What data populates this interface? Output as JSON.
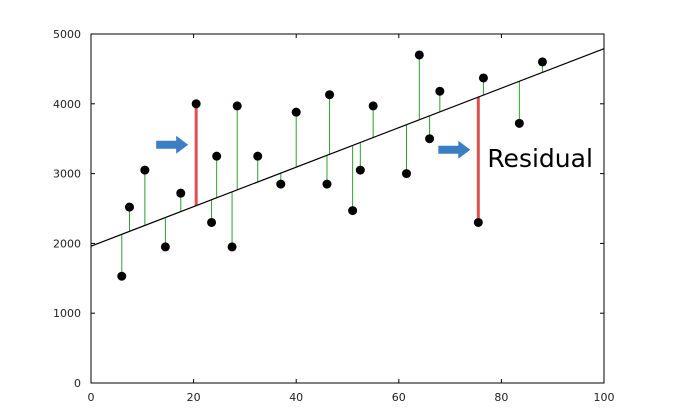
{
  "chart_data": {
    "type": "scatter",
    "title": "",
    "xlabel": "",
    "ylabel": "",
    "xlim": [
      0,
      100
    ],
    "ylim": [
      0,
      5000
    ],
    "x_ticks": [
      0,
      20,
      40,
      60,
      80,
      100
    ],
    "y_ticks": [
      0,
      1000,
      2000,
      3000,
      4000,
      5000
    ],
    "x_tick_labels": [
      "0",
      "20",
      "40",
      "60",
      "80",
      "100"
    ],
    "y_tick_labels": [
      "0",
      "1000",
      "2000",
      "3000",
      "4000",
      "5000"
    ],
    "grid": false,
    "regression_line": {
      "intercept": 1960,
      "slope": 28.3
    },
    "points": [
      {
        "x": 6,
        "y": 1530
      },
      {
        "x": 7.5,
        "y": 2520
      },
      {
        "x": 10.5,
        "y": 3050
      },
      {
        "x": 14.5,
        "y": 1950
      },
      {
        "x": 17.5,
        "y": 2720
      },
      {
        "x": 20.5,
        "y": 4000,
        "highlight": true
      },
      {
        "x": 23.5,
        "y": 2300
      },
      {
        "x": 24.5,
        "y": 3250
      },
      {
        "x": 27.5,
        "y": 1950
      },
      {
        "x": 28.5,
        "y": 3970
      },
      {
        "x": 32.5,
        "y": 3250
      },
      {
        "x": 37,
        "y": 2850
      },
      {
        "x": 40,
        "y": 3880
      },
      {
        "x": 46,
        "y": 2850
      },
      {
        "x": 46.5,
        "y": 4130
      },
      {
        "x": 51,
        "y": 2470
      },
      {
        "x": 52.5,
        "y": 3050
      },
      {
        "x": 55,
        "y": 3970
      },
      {
        "x": 61.5,
        "y": 3000
      },
      {
        "x": 64,
        "y": 4700
      },
      {
        "x": 66,
        "y": 3500
      },
      {
        "x": 68,
        "y": 4180
      },
      {
        "x": 75.5,
        "y": 2300,
        "highlight": true
      },
      {
        "x": 76.5,
        "y": 4370
      },
      {
        "x": 83.5,
        "y": 3720
      },
      {
        "x": 88,
        "y": 4600
      }
    ],
    "colors": {
      "points": "#000000",
      "regression_line": "#000000",
      "residual": "#2ca02c",
      "highlight_residual": "#e05050",
      "arrow": "#3a7fc1"
    },
    "annotations": [
      {
        "text": "",
        "arrow_target_point": 5
      },
      {
        "text": "Residual",
        "arrow_target_point": 22
      }
    ]
  }
}
